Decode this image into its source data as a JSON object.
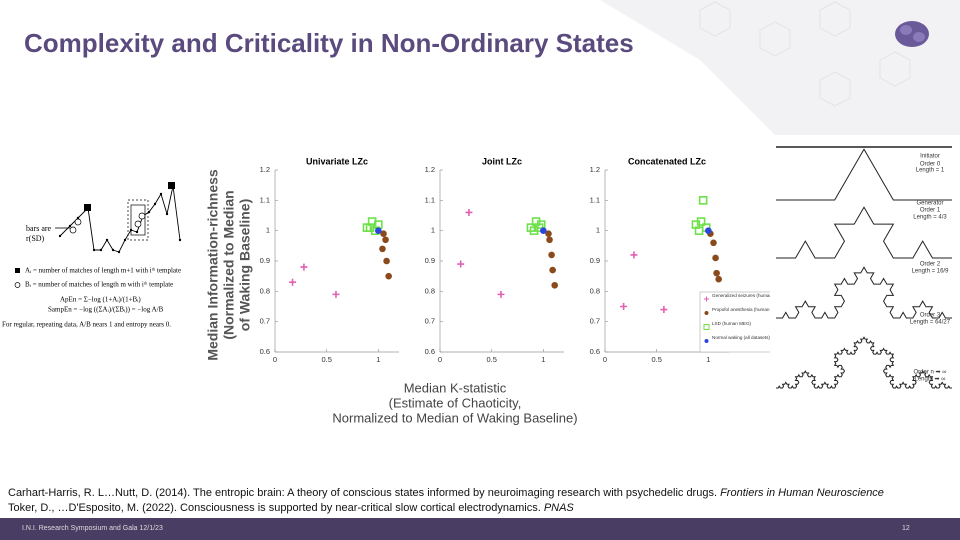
{
  "title": "Complexity and Criticality in Non-Ordinary States",
  "entropy_panel": {
    "bars_label": [
      "bars are",
      "r(SD)"
    ],
    "legend": [
      "Aᵢ = number of matches of length m+1 with iᵗʰ template",
      "Bᵢ = number of matches of length m with iᵗʰ template"
    ],
    "formulas": [
      "ApEn = Σ−log (1+Aᵢ)/(1+Bᵢ)",
      "SampEn = −log ((ΣAᵢ)/(ΣBᵢ)) = −log A/B"
    ],
    "note": "For regular, repeating data, A/B nears 1 and entropy nears 0."
  },
  "axes": {
    "y_label": [
      "Median Information-richness",
      "(Normalized to Median",
      "of Waking Baseline)"
    ],
    "x_label": [
      "Median K-statistic",
      "(Estimate of Chaoticity,",
      "Normalized to Median of Waking Baseline)"
    ]
  },
  "chart_data": [
    {
      "type": "scatter",
      "title": "Univariate LZc",
      "xlim": [
        0,
        1.2
      ],
      "ylim": [
        0.6,
        1.2
      ],
      "xticks": [
        0,
        0.5,
        1
      ],
      "yticks": [
        0.6,
        0.7,
        0.8,
        0.9,
        1,
        1.1,
        1.2
      ],
      "series": [
        {
          "color": "#e25fb4",
          "marker": "plus",
          "x": [
            0.17,
            0.28,
            0.59
          ],
          "values": [
            0.83,
            0.88,
            0.79
          ]
        },
        {
          "color": "#6ee04a",
          "marker": "square",
          "x": [
            0.89,
            0.94,
            1.0,
            0.92,
            0.97
          ],
          "values": [
            1.01,
            1.03,
            1.02,
            1.01,
            1.0
          ]
        },
        {
          "color": "#8a4a1c",
          "marker": "dot",
          "x": [
            1.05,
            1.07,
            1.04,
            1.08,
            1.1
          ],
          "values": [
            0.99,
            0.97,
            0.94,
            0.9,
            0.85
          ]
        },
        {
          "color": "#2a46e0",
          "marker": "dot",
          "x": [
            1.0
          ],
          "values": [
            1.0
          ]
        }
      ]
    },
    {
      "type": "scatter",
      "title": "Joint LZc",
      "xlim": [
        0,
        1.2
      ],
      "ylim": [
        0.6,
        1.2
      ],
      "xticks": [
        0,
        0.5,
        1
      ],
      "yticks": [
        0.6,
        0.7,
        0.8,
        0.9,
        1,
        1.1,
        1.2
      ],
      "series": [
        {
          "color": "#e25fb4",
          "marker": "plus",
          "x": [
            0.28,
            0.2,
            0.59
          ],
          "values": [
            1.06,
            0.89,
            0.79
          ]
        },
        {
          "color": "#6ee04a",
          "marker": "square",
          "x": [
            0.88,
            0.93,
            0.98,
            0.91,
            0.96
          ],
          "values": [
            1.01,
            1.03,
            1.02,
            1.0,
            1.01
          ]
        },
        {
          "color": "#8a4a1c",
          "marker": "dot",
          "x": [
            1.05,
            1.06,
            1.08,
            1.09,
            1.11
          ],
          "values": [
            0.99,
            0.97,
            0.92,
            0.87,
            0.82
          ]
        },
        {
          "color": "#2a46e0",
          "marker": "dot",
          "x": [
            1.0
          ],
          "values": [
            1.0
          ]
        }
      ]
    },
    {
      "type": "scatter",
      "title": "Concatenated LZc",
      "xlim": [
        0,
        1.2
      ],
      "ylim": [
        0.6,
        1.2
      ],
      "xticks": [
        0,
        0.5,
        1
      ],
      "yticks": [
        0.6,
        0.7,
        0.8,
        0.9,
        1,
        1.1,
        1.2
      ],
      "series": [
        {
          "name": "Generalized seizures (human ECoG+MEG)",
          "color": "#e25fb4",
          "marker": "plus",
          "x": [
            0.28,
            0.18,
            0.57
          ],
          "values": [
            0.92,
            0.75,
            0.74
          ]
        },
        {
          "name": "Propofol anesthesia (human+monkey EC",
          "color": "#8a4a1c",
          "marker": "dot",
          "x": [
            1.02,
            1.05,
            1.07,
            1.08,
            1.1
          ],
          "values": [
            0.99,
            0.96,
            0.91,
            0.86,
            0.84
          ]
        },
        {
          "name": "LSD (human MEG)",
          "color": "#6ee04a",
          "marker": "square",
          "x": [
            0.95,
            0.88,
            0.93,
            0.98,
            0.91
          ],
          "values": [
            1.1,
            1.02,
            1.03,
            1.01,
            1.0
          ]
        },
        {
          "name": "Normal waking (all datasets)",
          "color": "#2a46e0",
          "marker": "dot",
          "x": [
            1.0
          ],
          "values": [
            1.0
          ]
        }
      ]
    }
  ],
  "koch_panel": [
    [
      "Initiator",
      "Order 0",
      "Length = 1"
    ],
    [
      "Generator",
      "Order 1",
      "Length = 4/3"
    ],
    [
      "Order 2",
      "Length = 16/9"
    ],
    [
      "Order 3",
      "Length = 64/27"
    ],
    [
      "Order n ➡ ∞",
      "Length ➡ ∞"
    ]
  ],
  "references": [
    {
      "text": "Carhart-Harris, R. L…Nutt, D. (2014). The entropic brain: A theory of conscious states informed by neuroimaging research with psychedelic drugs.",
      "journal": "Frontiers in Human Neuroscience"
    },
    {
      "text": "Toker, D., …D'Esposito, M. (2022). Consciousness is supported by near-critical slow cortical electrodynamics.",
      "journal": "PNAS"
    }
  ],
  "footer": {
    "event": "I.N.I. Research Symposium and Gala 12/1/23",
    "page": "12"
  }
}
